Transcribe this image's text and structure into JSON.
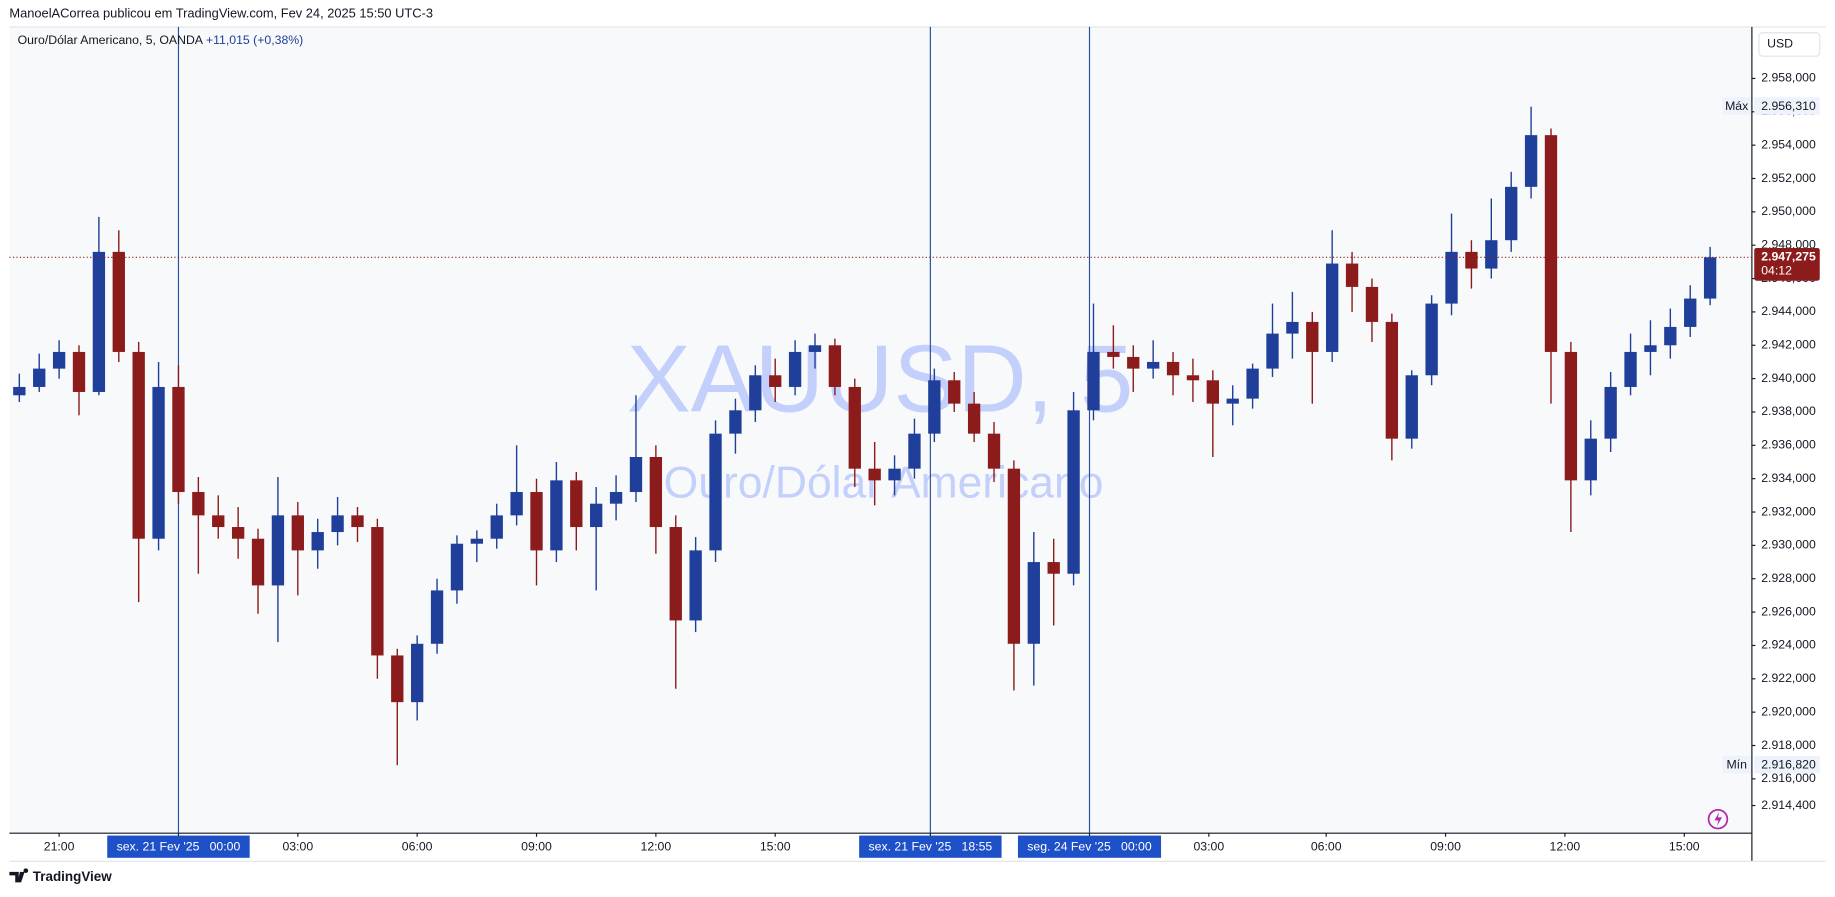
{
  "header": {
    "publisher_line": "ManoelACorrea publicou em TradingView.com, Fev 24, 2025 15:50 UTC-3"
  },
  "legend": {
    "symbol": "Ouro/Dólar Americano, 5, OANDA",
    "change": "+11,015 (+0,38%)"
  },
  "watermark": {
    "ticker": "XAUUSD, 5",
    "description": "Ouro/Dólar Americano"
  },
  "footer": {
    "brand": "TradingView"
  },
  "chart_data": {
    "type": "candlestick",
    "currency": "USD",
    "up_color": "#1f3f9a",
    "down_color": "#8c1c1c",
    "grid": false,
    "xlim": [
      -0.5,
      87.1
    ],
    "ylim": [
      2912.74,
      2961.09
    ],
    "xticks": [
      {
        "value": 2,
        "label": "21:00"
      },
      {
        "value": 8,
        "label": "sex. 21 Fev '25   00:00",
        "highlight": true
      },
      {
        "value": 14,
        "label": "03:00"
      },
      {
        "value": 20,
        "label": "06:00"
      },
      {
        "value": 26,
        "label": "09:00"
      },
      {
        "value": 32,
        "label": "12:00"
      },
      {
        "value": 38,
        "label": "15:00"
      },
      {
        "value": 45.8,
        "label": "sex. 21 Fev '25   18:55",
        "highlight": true
      },
      {
        "value": 53.8,
        "label": "seg. 24 Fev '25   00:00",
        "highlight": true
      },
      {
        "value": 59.8,
        "label": "03:00"
      },
      {
        "value": 65.7,
        "label": "06:00"
      },
      {
        "value": 71.7,
        "label": "09:00"
      },
      {
        "value": 77.7,
        "label": "12:00"
      },
      {
        "value": 83.7,
        "label": "15:00"
      }
    ],
    "yticks": [
      {
        "value": 2958,
        "label": "2.958,000"
      },
      {
        "value": 2956,
        "label": "2.956,000"
      },
      {
        "value": 2954,
        "label": "2.954,000"
      },
      {
        "value": 2952,
        "label": "2.952,000"
      },
      {
        "value": 2950,
        "label": "2.950,000"
      },
      {
        "value": 2948,
        "label": "2.948,000"
      },
      {
        "value": 2946,
        "label": "2.946,000"
      },
      {
        "value": 2944,
        "label": "2.944,000"
      },
      {
        "value": 2942,
        "label": "2.942,000"
      },
      {
        "value": 2940,
        "label": "2.940,000"
      },
      {
        "value": 2938,
        "label": "2.938,000"
      },
      {
        "value": 2936,
        "label": "2.936,000"
      },
      {
        "value": 2934,
        "label": "2.934,000"
      },
      {
        "value": 2932,
        "label": "2.932,000"
      },
      {
        "value": 2930,
        "label": "2.930,000"
      },
      {
        "value": 2928,
        "label": "2.928,000"
      },
      {
        "value": 2926,
        "label": "2.926,000"
      },
      {
        "value": 2924,
        "label": "2.924,000"
      },
      {
        "value": 2922,
        "label": "2.922,000"
      },
      {
        "value": 2920,
        "label": "2.920,000"
      },
      {
        "value": 2918,
        "label": "2.918,000"
      },
      {
        "value": 2916,
        "label": "2.916,000"
      },
      {
        "value": 2914.4,
        "label": "2.914,400"
      }
    ],
    "max_marker": {
      "text": "Máx",
      "value": 2956.31,
      "label": "2.956,310"
    },
    "min_marker": {
      "text": "Mín",
      "value": 2916.82,
      "label": "2.916,820"
    },
    "current_price": {
      "value": 2947.275,
      "label": "2.947,275",
      "countdown": "04:12"
    },
    "x": [
      0,
      1,
      2,
      3,
      4,
      5,
      6,
      7,
      8,
      9,
      10,
      11,
      12,
      13,
      14,
      15,
      16,
      17,
      18,
      19,
      20,
      21,
      22,
      23,
      24,
      25,
      26,
      27,
      28,
      29,
      30,
      31,
      32,
      33,
      34,
      35,
      36,
      37,
      38,
      39,
      40,
      41,
      42,
      43,
      44,
      45,
      46,
      47,
      48,
      49,
      50,
      51,
      52,
      53,
      54,
      55,
      56,
      57,
      58,
      59,
      60,
      61,
      62,
      63,
      64,
      65,
      66,
      67,
      68,
      69,
      70,
      71,
      72,
      73,
      74,
      75,
      76,
      77,
      78,
      79,
      80,
      81,
      82,
      83,
      84,
      85
    ],
    "open": [
      2939.0,
      2939.5,
      2940.6,
      2941.6,
      2939.2,
      2947.6,
      2941.6,
      2930.4,
      2939.5,
      2933.2,
      2931.8,
      2931.1,
      2930.4,
      2927.6,
      2931.8,
      2929.7,
      2930.8,
      2931.8,
      2931.1,
      2923.4,
      2920.6,
      2924.1,
      2927.3,
      2930.1,
      2930.4,
      2931.8,
      2933.2,
      2929.7,
      2933.9,
      2931.1,
      2932.5,
      2933.2,
      2935.3,
      2931.1,
      2925.5,
      2929.7,
      2936.7,
      2938.1,
      2940.2,
      2939.5,
      2941.6,
      2942.0,
      2939.5,
      2934.6,
      2933.9,
      2934.6,
      2936.7,
      2939.9,
      2938.5,
      2936.7,
      2934.6,
      2924.1,
      2929.0,
      2928.3,
      2938.1,
      2941.6,
      2941.3,
      2940.6,
      2941.0,
      2940.2,
      2939.9,
      2938.5,
      2938.8,
      2940.6,
      2942.7,
      2943.4,
      2941.6,
      2946.9,
      2945.5,
      2943.4,
      2936.4,
      2940.2,
      2944.5,
      2947.6,
      2946.6,
      2948.3,
      2951.5,
      2954.6,
      2941.6,
      2933.9,
      2936.4,
      2939.5,
      2941.6,
      2942.0,
      2943.1,
      2944.8
    ],
    "high": [
      2940.3,
      2941.5,
      2942.3,
      2942.0,
      2949.7,
      2948.9,
      2942.2,
      2941.0,
      2940.8,
      2934.1,
      2933.0,
      2932.3,
      2931.0,
      2934.1,
      2932.6,
      2931.6,
      2932.9,
      2932.3,
      2931.6,
      2923.8,
      2924.6,
      2928.0,
      2930.6,
      2930.9,
      2932.5,
      2936.0,
      2934.0,
      2935.0,
      2934.4,
      2933.5,
      2934.2,
      2939.0,
      2936.0,
      2931.8,
      2930.5,
      2937.5,
      2938.8,
      2940.8,
      2941.2,
      2942.3,
      2942.7,
      2942.4,
      2940.0,
      2936.2,
      2935.4,
      2937.6,
      2940.6,
      2940.4,
      2939.2,
      2937.4,
      2935.1,
      2930.8,
      2930.4,
      2939.2,
      2944.5,
      2943.2,
      2942.0,
      2942.3,
      2941.6,
      2941.2,
      2940.5,
      2939.6,
      2940.9,
      2944.5,
      2945.2,
      2944.0,
      2948.9,
      2947.6,
      2946.0,
      2943.9,
      2940.5,
      2945.0,
      2949.9,
      2948.3,
      2950.8,
      2952.4,
      2956.31,
      2955.0,
      2942.2,
      2937.5,
      2940.4,
      2942.7,
      2943.5,
      2944.2,
      2945.6,
      2947.9
    ],
    "low": [
      2938.6,
      2939.2,
      2940.0,
      2937.8,
      2939.0,
      2941.0,
      2926.6,
      2929.7,
      2932.5,
      2928.3,
      2930.4,
      2929.2,
      2925.9,
      2924.2,
      2927.0,
      2928.6,
      2930.0,
      2930.2,
      2922.0,
      2916.82,
      2919.5,
      2923.5,
      2926.5,
      2929.0,
      2929.8,
      2931.2,
      2927.6,
      2929.0,
      2929.7,
      2927.3,
      2931.5,
      2932.6,
      2929.5,
      2921.4,
      2924.8,
      2929.0,
      2935.5,
      2937.4,
      2938.6,
      2939.0,
      2940.6,
      2939.0,
      2933.5,
      2932.4,
      2933.0,
      2934.0,
      2936.2,
      2938.0,
      2936.2,
      2933.8,
      2921.3,
      2921.6,
      2925.2,
      2927.6,
      2937.5,
      2940.6,
      2939.2,
      2940.0,
      2939.0,
      2938.6,
      2935.3,
      2937.2,
      2938.2,
      2940.1,
      2941.2,
      2938.5,
      2941.0,
      2944.0,
      2942.2,
      2935.1,
      2935.8,
      2939.6,
      2943.8,
      2945.4,
      2946.0,
      2947.6,
      2950.8,
      2938.5,
      2930.8,
      2933.0,
      2935.6,
      2939.0,
      2940.2,
      2941.2,
      2942.5,
      2944.4
    ],
    "close": [
      2939.5,
      2940.6,
      2941.6,
      2939.2,
      2947.6,
      2941.6,
      2930.4,
      2939.5,
      2933.2,
      2931.8,
      2931.1,
      2930.4,
      2927.6,
      2931.8,
      2929.7,
      2930.8,
      2931.8,
      2931.1,
      2923.4,
      2920.6,
      2924.1,
      2927.3,
      2930.1,
      2930.4,
      2931.8,
      2933.2,
      2929.7,
      2933.9,
      2931.1,
      2932.5,
      2933.2,
      2935.3,
      2931.1,
      2925.5,
      2929.7,
      2936.7,
      2938.1,
      2940.2,
      2939.5,
      2941.6,
      2942.0,
      2939.5,
      2934.6,
      2933.9,
      2934.6,
      2936.7,
      2939.9,
      2938.5,
      2936.7,
      2934.6,
      2924.1,
      2929.0,
      2928.3,
      2938.1,
      2941.6,
      2941.3,
      2940.6,
      2941.0,
      2940.2,
      2939.9,
      2938.5,
      2938.8,
      2940.6,
      2942.7,
      2943.4,
      2941.6,
      2946.9,
      2945.5,
      2943.4,
      2936.4,
      2940.2,
      2944.5,
      2947.6,
      2946.6,
      2948.3,
      2951.5,
      2954.6,
      2941.6,
      2933.9,
      2936.4,
      2939.5,
      2941.6,
      2942.0,
      2943.1,
      2944.8,
      2947.275
    ]
  }
}
